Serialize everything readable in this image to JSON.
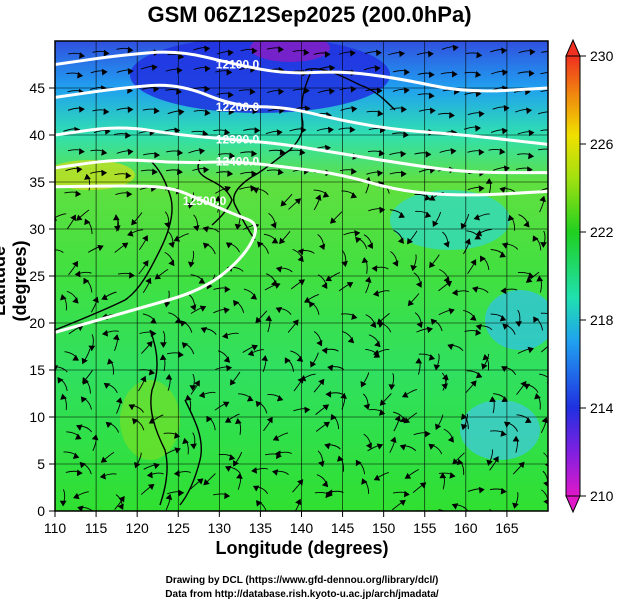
{
  "title": "GSM 06Z12Sep2025 (200.0hPa)",
  "chart_data": {
    "type": "heatmap",
    "title": "GSM 06Z12Sep2025 (200.0hPa)",
    "xlabel": "Longitude (degrees)",
    "ylabel": "Latitude  (degrees)",
    "xlim": [
      110,
      170
    ],
    "ylim": [
      0,
      50
    ],
    "x_ticks": [
      "110",
      "115",
      "120",
      "125",
      "130",
      "135",
      "140",
      "145",
      "150",
      "155",
      "160",
      "165"
    ],
    "y_ticks": [
      "0",
      "5",
      "10",
      "15",
      "20",
      "25",
      "30",
      "35",
      "40",
      "45"
    ],
    "colorbar": {
      "range": [
        210,
        230
      ],
      "ticks": [
        "210",
        "214",
        "218",
        "222",
        "226",
        "230"
      ]
    },
    "contours": [
      {
        "label": "12100.0",
        "lon_lat": [
          [
            110,
            47.5
          ],
          [
            118,
            48.5
          ],
          [
            125,
            49
          ],
          [
            132,
            47.5
          ],
          [
            138,
            46.5
          ],
          [
            145,
            46.8
          ],
          [
            152,
            46
          ],
          [
            160,
            44.5
          ],
          [
            170,
            45
          ]
        ]
      },
      {
        "label": "12200.0",
        "lon_lat": [
          [
            110,
            44
          ],
          [
            118,
            45
          ],
          [
            125,
            45.5
          ],
          [
            132,
            43
          ],
          [
            138,
            43
          ],
          [
            145,
            41.5
          ],
          [
            152,
            40.5
          ],
          [
            160,
            40
          ],
          [
            170,
            39
          ]
        ]
      },
      {
        "label": "12300.0",
        "lon_lat": [
          [
            110,
            40
          ],
          [
            118,
            41
          ],
          [
            125,
            40
          ],
          [
            132,
            39.5
          ],
          [
            138,
            39
          ],
          [
            145,
            38
          ],
          [
            152,
            37
          ],
          [
            160,
            36
          ],
          [
            170,
            36
          ]
        ]
      },
      {
        "label": "12400.0",
        "lon_lat": [
          [
            110,
            36.5
          ],
          [
            118,
            37.5
          ],
          [
            125,
            37
          ],
          [
            132,
            37.2
          ],
          [
            138,
            36.6
          ],
          [
            145,
            35.8
          ],
          [
            152,
            34
          ],
          [
            160,
            33.5
          ],
          [
            170,
            34
          ]
        ]
      },
      {
        "label": "12500.0",
        "lon_lat": [
          [
            110,
            34.5
          ],
          [
            118,
            34.6
          ],
          [
            124,
            34.5
          ],
          [
            128,
            33
          ],
          [
            132,
            31.5
          ],
          [
            135,
            30.5
          ],
          [
            133,
            27
          ],
          [
            128,
            23.5
          ],
          [
            120,
            21.5
          ],
          [
            114,
            20
          ],
          [
            110,
            19
          ]
        ]
      }
    ]
  },
  "credits": {
    "line1": "Drawing by DCL (https://www.gfd-dennou.org/library/dcl/)",
    "line2": "Data from http://database.rish.kyoto-u.ac.jp/arch/jmadata/"
  },
  "colors": {
    "low": "#d010c0",
    "mid": "#20d000",
    "high": "#f04020"
  }
}
